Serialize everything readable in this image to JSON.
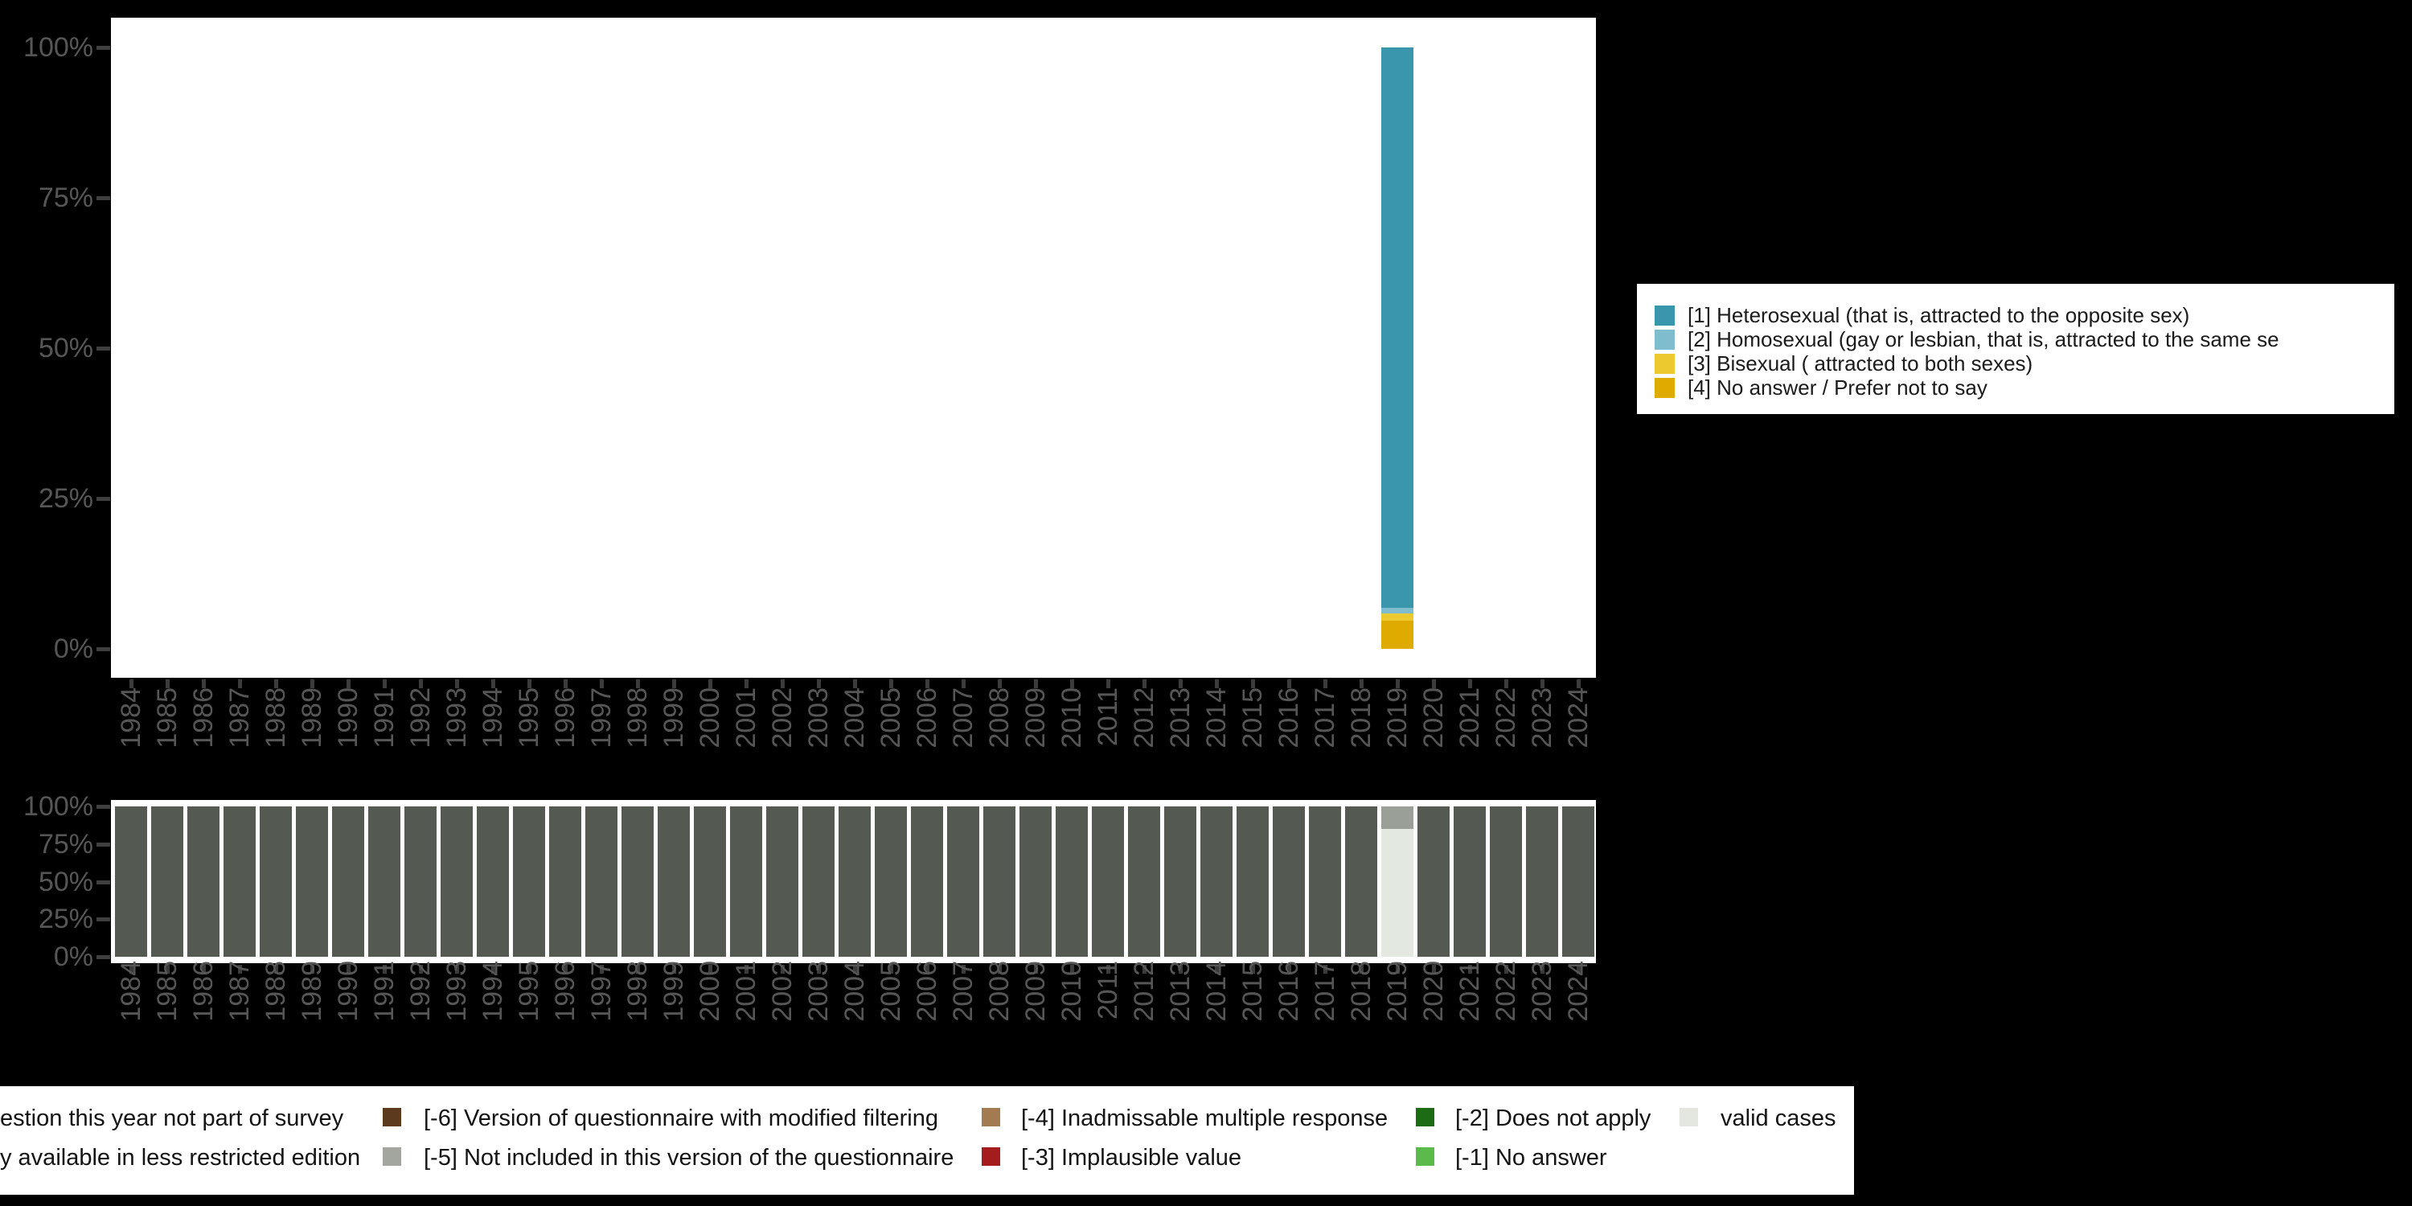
{
  "accent_colors": {
    "heterosexual": "#3996ad",
    "homosexual": "#7fbcce",
    "bisexual": "#ecc92f",
    "no_answer_prefer": "#dfab00",
    "missing_dark": "#545a52",
    "valid_light": "#e3e8e1",
    "restricted_gray": "#9aa098",
    "axis_text": "#565656"
  },
  "chart_data": [
    {
      "type": "bar",
      "stacked": true,
      "title": "",
      "xlabel": "",
      "ylabel": "",
      "ylim": [
        0,
        100
      ],
      "grid": false,
      "ytick_labels": [
        "100%",
        "75%",
        "50%",
        "25%",
        "0%"
      ],
      "categories": [
        "1984",
        "1985",
        "1986",
        "1987",
        "1988",
        "1989",
        "1990",
        "1991",
        "1992",
        "1993",
        "1994",
        "1995",
        "1996",
        "1997",
        "1998",
        "1999",
        "2000",
        "2001",
        "2002",
        "2003",
        "2004",
        "2005",
        "2006",
        "2007",
        "2008",
        "2009",
        "2010",
        "2011",
        "2012",
        "2013",
        "2014",
        "2015",
        "2016",
        "2017",
        "2018",
        "2019",
        "2020",
        "2021",
        "2022",
        "2023",
        "2024"
      ],
      "note": "Only the year 2019 has a bar; all other years are empty",
      "special_year": "2019",
      "series": [
        {
          "name": "[1] Heterosexual (that is, attracted to the opposite sex)",
          "color": "#3996ad",
          "data": {
            "2019": 93.2
          }
        },
        {
          "name": "[2] Homosexual (gay or lesbian, that is, attracted to the same se",
          "color": "#7fbcce",
          "data": {
            "2019": 0.9
          }
        },
        {
          "name": "[3] Bisexual ( attracted to both sexes)",
          "color": "#ecc92f",
          "data": {
            "2019": 1.2
          }
        },
        {
          "name": "[4] No answer / Prefer not to say",
          "color": "#dfab00",
          "data": {
            "2019": 4.7
          }
        }
      ],
      "legend_position": "right"
    },
    {
      "type": "bar",
      "stacked": true,
      "title": "",
      "ylim": [
        0,
        100
      ],
      "grid": false,
      "ytick_labels": [
        "100%",
        "75%",
        "50%",
        "25%",
        "0%"
      ],
      "categories": [
        "1984",
        "1985",
        "1986",
        "1987",
        "1988",
        "1989",
        "1990",
        "1991",
        "1992",
        "1993",
        "1994",
        "1995",
        "1996",
        "1997",
        "1998",
        "1999",
        "2000",
        "2001",
        "2002",
        "2003",
        "2004",
        "2005",
        "2006",
        "2007",
        "2008",
        "2009",
        "2010",
        "2011",
        "2012",
        "2013",
        "2014",
        "2015",
        "2016",
        "2017",
        "2018",
        "2019",
        "2020",
        "2021",
        "2022",
        "2023",
        "2024"
      ],
      "note": "Missing-data strip: every year is 100% missing (dark) except 2019",
      "default_segment": {
        "name": "missing / question this year not part of survey",
        "value": 100,
        "color": "#545a52"
      },
      "special_year": "2019",
      "special_segments": [
        {
          "name": "restricted edition share",
          "value": 15,
          "color": "#9aa098"
        },
        {
          "name": "valid cases",
          "value": 85,
          "color": "#e3e8e1"
        }
      ]
    }
  ],
  "orientation_legend": {
    "items": [
      {
        "label": "[1] Heterosexual (that is, attracted to the opposite sex)",
        "color": "#3996ad"
      },
      {
        "label": "[2] Homosexual (gay or lesbian, that is, attracted to the same se",
        "color": "#7fbcce"
      },
      {
        "label": "[3] Bisexual ( attracted to both sexes)",
        "color": "#ecc92f"
      },
      {
        "label": "[4] No answer / Prefer not to say",
        "color": "#dfab00"
      }
    ]
  },
  "missing_legend": {
    "rows": [
      [
        {
          "label": "estion this year not part of survey",
          "color": null,
          "clipped": true,
          "x_text": 0
        },
        {
          "label": "[-6] Version of questionnaire with modified filtering",
          "color": "#5c3a1e",
          "x_swatch": 476,
          "x_text": 527
        },
        {
          "label": "[-4] Inadmissable multiple response",
          "color": "#a37b50",
          "x_swatch": 1221,
          "x_text": 1270
        },
        {
          "label": "[-2] Does not apply",
          "color": "#1d6b14",
          "x_swatch": 1761,
          "x_text": 1810
        },
        {
          "label": "valid cases",
          "color": "#e3e7e0",
          "x_swatch": 2089,
          "x_text": 2140
        }
      ],
      [
        {
          "label": "y available in less restricted edition",
          "color": null,
          "clipped": true,
          "x_text": 0
        },
        {
          "label": "[-5] Not included in this version of the questionnaire",
          "color": "#a2a69f",
          "x_swatch": 476,
          "x_text": 527
        },
        {
          "label": "[-3] Implausible value",
          "color": "#a51c1c",
          "x_swatch": 1221,
          "x_text": 1270
        },
        {
          "label": "[-1] No answer",
          "color": "#5aba4a",
          "x_swatch": 1761,
          "x_text": 1810
        }
      ]
    ]
  }
}
